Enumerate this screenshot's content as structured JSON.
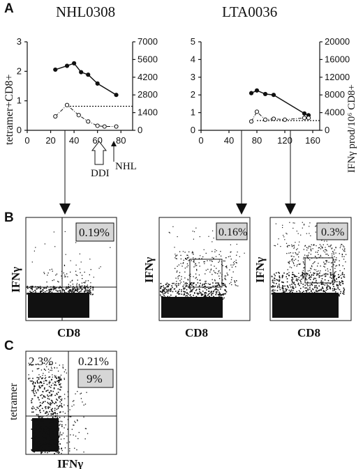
{
  "panel_letters": {
    "a": "A",
    "b": "B",
    "c": "C"
  },
  "panel_a": {
    "left": {
      "title": "NHL0308",
      "ylabel_left": "tetramer+CD8+",
      "yticks_left": [
        "0",
        "1",
        "2",
        "3"
      ],
      "yticks_right": [
        "0",
        "1400",
        "2800",
        "4200",
        "5600",
        "7000"
      ],
      "xticks": [
        "0",
        "20",
        "40",
        "60",
        "80"
      ],
      "annotations": {
        "ddi": "DDI",
        "nhl": "NHL"
      }
    },
    "right": {
      "title": "LTA0036",
      "ylabel_right": "IFNγ prod/10⁶ CD8+",
      "yticks_left": [
        "0",
        "1",
        "2",
        "3",
        "4",
        "5"
      ],
      "yticks_right": [
        "0",
        "4000",
        "8000",
        "12000",
        "16000",
        "20000"
      ],
      "xticks": [
        "0",
        "40",
        "80",
        "120",
        "160"
      ]
    }
  },
  "panel_b": {
    "plots": [
      {
        "ylabel": "IFNγ",
        "xlabel": "CD8",
        "percent": "0.19%"
      },
      {
        "ylabel": "IFNγ",
        "xlabel": "CD8",
        "percent": "0.16%"
      },
      {
        "ylabel": "IFNγ",
        "xlabel": "CD8",
        "percent": "0.3%"
      }
    ]
  },
  "panel_c": {
    "ylabel": "tetramer",
    "xlabel": "IFNγ",
    "ul_percent": "2.3%",
    "ur_percent": "0.21%",
    "box_percent": "9%"
  },
  "chart_data": [
    {
      "type": "line",
      "panel": "A-left",
      "title": "NHL0308",
      "xlim": [
        0,
        90
      ],
      "ylim_left": [
        0,
        3.5
      ],
      "ylim_right": [
        0,
        7000
      ],
      "series": [
        {
          "axis": "left",
          "marker": "filled",
          "x": [
            24,
            34,
            40,
            46,
            52,
            60,
            76
          ],
          "y": [
            2.4,
            2.55,
            2.65,
            2.3,
            2.2,
            1.85,
            1.4
          ]
        },
        {
          "axis": "left",
          "marker": "open",
          "x": [
            24,
            34,
            44,
            52,
            60,
            66,
            76
          ],
          "y": [
            0.55,
            1.0,
            0.6,
            0.35,
            0.18,
            0.15,
            0.15
          ]
        }
      ],
      "reference_line_y": 0.95
    },
    {
      "type": "line",
      "panel": "A-right",
      "title": "LTA0036",
      "xlim": [
        0,
        170
      ],
      "ylim_left": [
        0,
        5
      ],
      "ylim_right": [
        0,
        20000
      ],
      "series": [
        {
          "axis": "left",
          "marker": "filled",
          "x": [
            72,
            80,
            92,
            104,
            148,
            154
          ],
          "y": [
            2.1,
            2.25,
            2.05,
            2.0,
            0.95,
            0.85
          ]
        },
        {
          "axis": "left",
          "marker": "open",
          "x": [
            72,
            80,
            92,
            104,
            120,
            148,
            154
          ],
          "y": [
            0.5,
            1.05,
            0.6,
            0.65,
            0.6,
            0.7,
            0.7
          ]
        }
      ],
      "reference_line_y": 0.55
    }
  ]
}
